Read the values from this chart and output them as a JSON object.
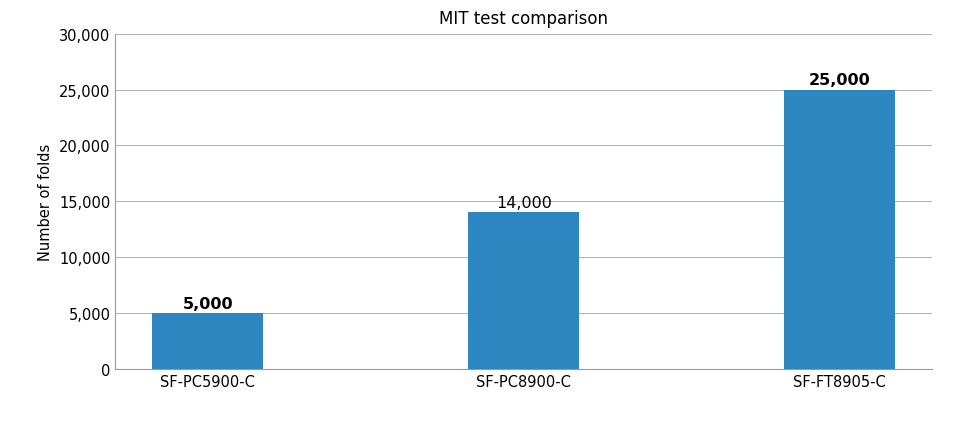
{
  "title": "MIT test comparison",
  "categories": [
    "SF-PC5900-C",
    "SF-PC8900-C",
    "SF-FT8905-C"
  ],
  "values": [
    5000,
    14000,
    25000
  ],
  "bar_color": "#2E86C1",
  "ylabel": "Number of folds",
  "ylim": [
    0,
    30000
  ],
  "yticks": [
    0,
    5000,
    10000,
    15000,
    20000,
    25000,
    30000
  ],
  "bar_labels": [
    "5,000",
    "14,000",
    "25,000"
  ],
  "bar_label_bold": [
    true,
    false,
    true
  ],
  "title_fontsize": 12,
  "ylabel_fontsize": 10.5,
  "tick_fontsize": 10.5,
  "label_fontsize": 11.5,
  "background_color": "#ffffff",
  "grid_color": "#b0b0b0",
  "bar_width": 0.35
}
